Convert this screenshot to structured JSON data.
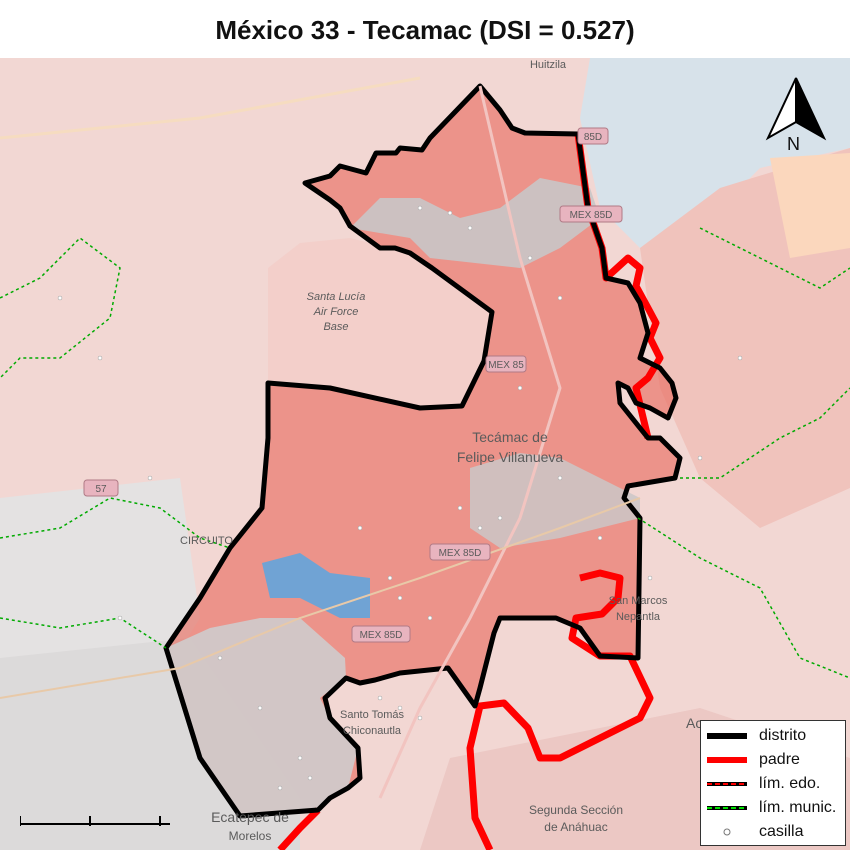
{
  "title": "México 33 - Tecamac (DSI = 0.527)",
  "map": {
    "place_labels": [
      {
        "name": "huitzila",
        "text": "Huitzila"
      },
      {
        "name": "santa-lucia",
        "text": "Santa Lucía"
      },
      {
        "name": "air-force",
        "text": "Air Force"
      },
      {
        "name": "base",
        "text": "Base"
      },
      {
        "name": "tecamac-1",
        "text": "Tecámac de"
      },
      {
        "name": "tecamac-2",
        "text": "Felipe Villanueva"
      },
      {
        "name": "circuito",
        "text": "CIRCUITO"
      },
      {
        "name": "san-marcos-1",
        "text": "San Marcos"
      },
      {
        "name": "san-marcos-2",
        "text": "Nepantla"
      },
      {
        "name": "santo-tomas-1",
        "text": "Santo Tomás"
      },
      {
        "name": "santo-tomas-2",
        "text": "Chiconautla"
      },
      {
        "name": "segunda-1",
        "text": "Segunda Sección"
      },
      {
        "name": "segunda-2",
        "text": "de Anáhuac"
      },
      {
        "name": "ecatepec-1",
        "text": "Ecatepec de"
      },
      {
        "name": "ecatepec-2",
        "text": "Morelos"
      },
      {
        "name": "ac",
        "text": "Ac"
      }
    ],
    "road_shields": [
      {
        "name": "mex85d-north",
        "text": "85D"
      },
      {
        "name": "mex85d-2",
        "text": "MEX 85D"
      },
      {
        "name": "mex85-mid",
        "text": "MEX 85"
      },
      {
        "name": "mex57",
        "text": "57"
      },
      {
        "name": "mex85d-3",
        "text": "MEX 85D"
      },
      {
        "name": "mex85d-4",
        "text": "MEX 85D"
      }
    ],
    "north_label": "N",
    "colors": {
      "district_outline": "#000000",
      "parent_outline": "#ff0000",
      "state_line": "#ff0000",
      "munic_line": "#00cc00",
      "fill_red_strong": "#e84a3f",
      "fill_red_light": "#f4b2ab",
      "fill_blue": "#5aa6e0",
      "fill_gray": "#c8c8c8"
    }
  },
  "legend": {
    "items": [
      {
        "label": "distrito"
      },
      {
        "label": "padre"
      },
      {
        "label": "lím. edo."
      },
      {
        "label": "lím. munic."
      },
      {
        "label": "casilla"
      }
    ]
  }
}
